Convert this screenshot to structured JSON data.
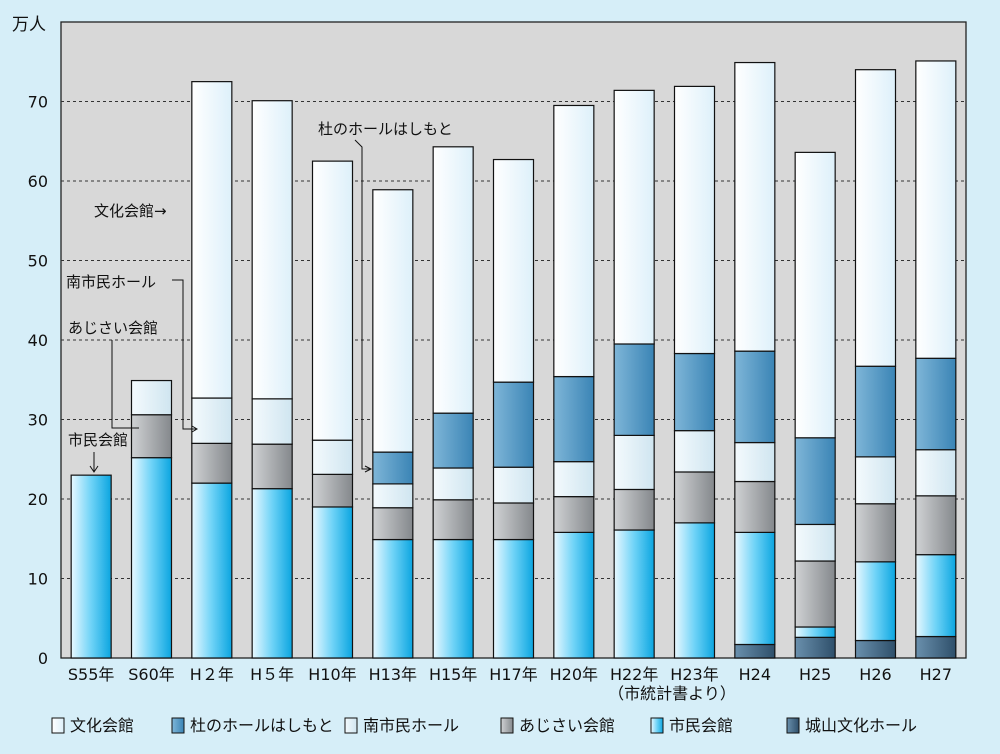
{
  "chart_data": {
    "type": "bar",
    "stacked": true,
    "y_unit": "万人",
    "ylim": [
      0,
      80
    ],
    "y_ticks": [
      "0",
      "10",
      "20",
      "30",
      "40",
      "50",
      "60",
      "70"
    ],
    "grid": true,
    "legend_position": "bottom",
    "categories": [
      "S55年",
      "S60年",
      "H２年",
      "H５年",
      "H10年",
      "H13年",
      "H15年",
      "H17年",
      "H20年",
      "H22年",
      "H23年",
      "H24",
      "H25",
      "H26",
      "H27"
    ],
    "category_notes": {
      "9": "（市統計書より）"
    },
    "series": [
      {
        "name": "城山文化ホール",
        "color": "#4d7390",
        "values": [
          0,
          0,
          0,
          0,
          0,
          0,
          0,
          0,
          0,
          0,
          0,
          1.7,
          2.6,
          2.2,
          2.7
        ]
      },
      {
        "name": "市民会館",
        "color": "#33bdf0",
        "values": [
          23,
          25.2,
          22,
          21.3,
          19,
          14.9,
          14.9,
          14.9,
          15.8,
          16.1,
          17,
          14.1,
          1.3,
          9.9,
          10.3
        ]
      },
      {
        "name": "あじさい会館",
        "color": "#9a9ea2",
        "values": [
          0,
          5.4,
          5,
          5.6,
          4.1,
          4,
          5,
          4.6,
          4.5,
          5.1,
          6.4,
          6.4,
          8.3,
          7.3,
          7.4
        ]
      },
      {
        "name": "南市民ホール",
        "color": "#dcedf5",
        "values": [
          0,
          4.3,
          5.7,
          5.7,
          4.3,
          3,
          4,
          4.5,
          4.4,
          6.8,
          5.2,
          4.9,
          4.6,
          5.9,
          5.8
        ]
      },
      {
        "name": "杜のホールはしもと",
        "color": "#4f9ac6",
        "values": [
          0,
          0,
          0,
          0,
          0,
          4,
          6.9,
          10.7,
          10.7,
          11.5,
          9.7,
          11.5,
          10.9,
          11.4,
          11.5
        ]
      },
      {
        "name": "文化会館",
        "color": "#eef8fd",
        "values": [
          0,
          0,
          39.8,
          37.5,
          35.1,
          33,
          33.5,
          28,
          34.1,
          31.9,
          33.6,
          36.3,
          35.9,
          37.3,
          37.4
        ]
      }
    ],
    "annotations": [
      {
        "text": "文化会館→"
      },
      {
        "text": "南市民ホール"
      },
      {
        "text": "あじさい会館"
      },
      {
        "text": "市民会館"
      },
      {
        "text": "杜のホールはしもと"
      }
    ]
  },
  "legend_order": [
    5,
    4,
    3,
    2,
    1,
    0
  ]
}
